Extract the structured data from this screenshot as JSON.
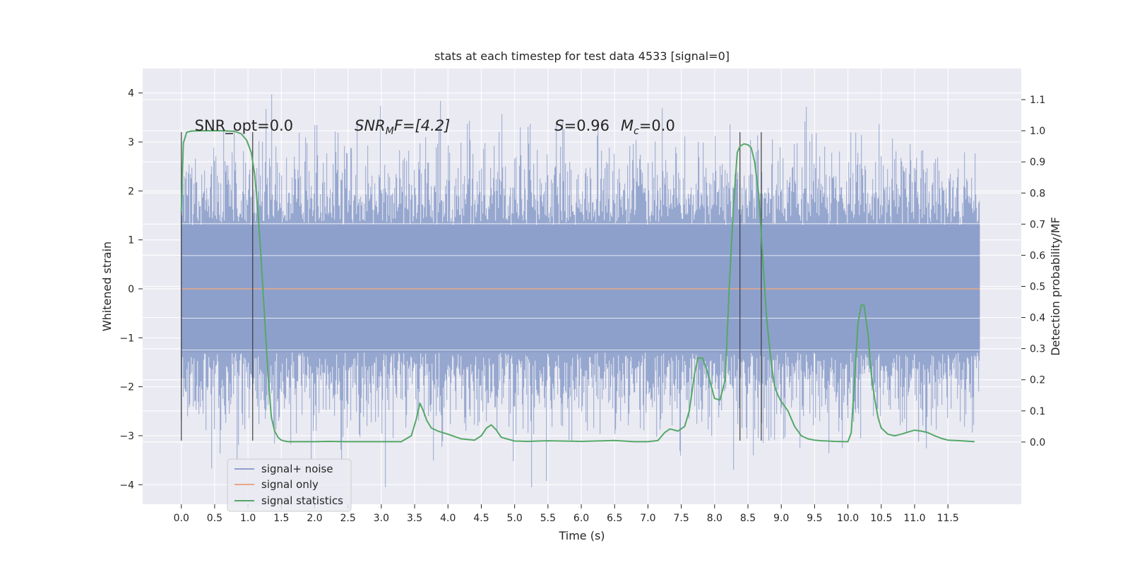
{
  "chart_data": {
    "type": "line",
    "title": "stats at each timestep for test data 4533 [signal=0]",
    "xlabel": "Time (s)",
    "ylabel_left": "Whitened strain",
    "ylabel_right": "Detection probability/MF",
    "xlim": [
      -0.58,
      12.6
    ],
    "ylim_left": [
      -4.4,
      4.5
    ],
    "ylim_right": [
      -0.2,
      1.2
    ],
    "grid": true,
    "legend_placement": "lower-left",
    "x_ticks": [
      0.0,
      0.5,
      1.0,
      1.5,
      2.0,
      2.5,
      3.0,
      3.5,
      4.0,
      4.5,
      5.0,
      5.5,
      6.0,
      6.5,
      7.0,
      7.5,
      8.0,
      8.5,
      9.0,
      9.5,
      10.0,
      10.5,
      11.0,
      11.5
    ],
    "x_tick_labels": [
      "0.0",
      "0.5",
      "1.0",
      "1.5",
      "2.0",
      "2.5",
      "3.0",
      "3.5",
      "4.0",
      "4.5",
      "5.0",
      "5.5",
      "6.0",
      "6.5",
      "7.0",
      "7.5",
      "8.0",
      "8.5",
      "9.0",
      "9.5",
      "10.0",
      "10.5",
      "11.0",
      "11.5"
    ],
    "y_left_ticks": [
      -4,
      -3,
      -2,
      -1,
      0,
      1,
      2,
      3,
      4
    ],
    "y_left_tick_labels": [
      "−4",
      "−3",
      "−2",
      "−1",
      "0",
      "1",
      "2",
      "3",
      "4"
    ],
    "y_right_ticks": [
      0.0,
      0.1,
      0.2,
      0.3,
      0.4,
      0.5,
      0.6,
      0.7,
      0.8,
      0.9,
      1.0,
      1.1
    ],
    "y_right_tick_labels": [
      "0.0",
      "0.1",
      "0.2",
      "0.3",
      "0.4",
      "0.5",
      "0.6",
      "0.7",
      "0.8",
      "0.9",
      "1.0",
      "1.1"
    ],
    "annotations": [
      {
        "text": "SNR_opt=0.0",
        "x": 0.2,
        "y": 3.2
      },
      {
        "text": "SNR_MF=[4.2]",
        "x": 2.6,
        "y": 3.2
      },
      {
        "text": "S=0.96   M_c=0.0",
        "x": 5.6,
        "y": 3.2
      }
    ],
    "annotation_texts": {
      "snr_opt": "SNR_opt=0.0",
      "snr_mf_base": "SNR",
      "snr_mf_sub": "M",
      "snr_mf_rest": "F=[4.2]",
      "s_label": "S",
      "s_value": "=0.96",
      "mc_label": "M",
      "mc_sub": "c",
      "mc_value": "=0.0"
    },
    "vertical_lines_x": [
      0.0,
      1.07,
      8.38,
      8.7
    ],
    "vertical_lines_range_left": [
      -3.1,
      3.2
    ],
    "series": [
      {
        "name": "signal+ noise",
        "axis": "left",
        "color": "#8da0cb",
        "x_range": [
          0.0,
          11.98
        ],
        "band_abs_p50": 1.3,
        "band_abs_max": 4.05
      },
      {
        "name": "signal only",
        "axis": "left",
        "color": "#e8a786",
        "x": [
          0.0,
          11.98
        ],
        "y": [
          0.0,
          0.0
        ]
      },
      {
        "name": "signal statistics",
        "axis": "right",
        "color": "#55a868",
        "x": [
          0.0,
          0.03,
          0.08,
          0.15,
          0.25,
          0.4,
          0.6,
          0.8,
          0.9,
          0.98,
          1.05,
          1.1,
          1.15,
          1.2,
          1.25,
          1.3,
          1.35,
          1.4,
          1.45,
          1.5,
          1.55,
          1.6,
          1.7,
          2.0,
          2.2,
          2.5,
          3.0,
          3.3,
          3.45,
          3.52,
          3.58,
          3.63,
          3.68,
          3.75,
          3.85,
          4.0,
          4.2,
          4.4,
          4.5,
          4.58,
          4.65,
          4.72,
          4.8,
          5.0,
          5.2,
          5.5,
          6.0,
          6.5,
          6.8,
          7.0,
          7.15,
          7.25,
          7.33,
          7.45,
          7.55,
          7.62,
          7.7,
          7.75,
          7.82,
          7.9,
          8.0,
          8.08,
          8.16,
          8.22,
          8.28,
          8.34,
          8.38,
          8.44,
          8.5,
          8.55,
          8.6,
          8.66,
          8.72,
          8.78,
          8.85,
          8.9,
          8.95,
          9.0,
          9.1,
          9.2,
          9.3,
          9.4,
          9.5,
          9.6,
          9.7,
          9.8,
          10.0,
          10.05,
          10.1,
          10.15,
          10.2,
          10.24,
          10.3,
          10.35,
          10.4,
          10.45,
          10.5,
          10.6,
          10.7,
          10.8,
          10.9,
          11.0,
          11.1,
          11.2,
          11.3,
          11.4,
          11.5,
          11.7,
          11.9
        ],
        "y": [
          0.74,
          0.96,
          0.995,
          0.999,
          1.0,
          1.0,
          1.0,
          0.998,
          0.99,
          0.97,
          0.93,
          0.86,
          0.74,
          0.58,
          0.4,
          0.22,
          0.08,
          0.035,
          0.015,
          0.006,
          0.003,
          0.001,
          0.001,
          0.001,
          0.002,
          0.001,
          0.001,
          0.001,
          0.02,
          0.07,
          0.125,
          0.1,
          0.07,
          0.045,
          0.035,
          0.025,
          0.01,
          0.006,
          0.02,
          0.045,
          0.055,
          0.04,
          0.015,
          0.003,
          0.002,
          0.004,
          0.002,
          0.005,
          0.001,
          0.001,
          0.005,
          0.03,
          0.042,
          0.035,
          0.05,
          0.1,
          0.22,
          0.27,
          0.27,
          0.22,
          0.14,
          0.135,
          0.2,
          0.5,
          0.75,
          0.93,
          0.95,
          0.958,
          0.955,
          0.945,
          0.9,
          0.8,
          0.6,
          0.4,
          0.25,
          0.18,
          0.15,
          0.13,
          0.1,
          0.05,
          0.02,
          0.01,
          0.006,
          0.004,
          0.003,
          0.002,
          0.001,
          0.03,
          0.2,
          0.38,
          0.44,
          0.44,
          0.35,
          0.22,
          0.14,
          0.08,
          0.045,
          0.025,
          0.02,
          0.025,
          0.032,
          0.038,
          0.035,
          0.03,
          0.02,
          0.012,
          0.006,
          0.004,
          0.001
        ]
      }
    ],
    "legend": [
      "signal+ noise",
      "signal only",
      "signal statistics"
    ]
  }
}
